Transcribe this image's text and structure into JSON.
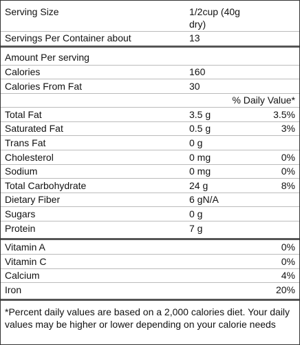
{
  "serving": {
    "label": "Serving Size",
    "value_lines": [
      "1/2cup (40g",
      "dry)"
    ]
  },
  "servings": {
    "label": "Servings Per Container about",
    "value": "13"
  },
  "amount_header": "Amount Per serving",
  "calories": [
    {
      "label": "Calories",
      "amount": "160"
    },
    {
      "label": "Calories From Fat",
      "amount": "30"
    }
  ],
  "dv_header": "% Daily Value*",
  "nutrients": [
    {
      "label": "Total Fat",
      "amount": "3.5 g",
      "dv": "3.5%"
    },
    {
      "label": "Saturated Fat",
      "amount": "0.5 g",
      "dv": "3%"
    },
    {
      "label": "Trans Fat",
      "amount": "0 g"
    },
    {
      "label": "Cholesterol",
      "amount": "0 mg",
      "dv": "0%"
    },
    {
      "label": "Sodium",
      "amount": "0 mg",
      "dv": "0%"
    },
    {
      "label": "Total Carbohydrate",
      "amount": "24 g",
      "dv": "8%"
    },
    {
      "label": "Dietary Fiber",
      "amount": "6 gN/A"
    },
    {
      "label": "Sugars",
      "amount": "0 g"
    },
    {
      "label": "Protein",
      "amount": "7 g"
    }
  ],
  "vitamins": [
    {
      "label": "Vitamin A",
      "dv": "0%"
    },
    {
      "label": "Vitamin C",
      "dv": "0%"
    },
    {
      "label": "Calcium",
      "dv": "4%"
    },
    {
      "label": "Iron",
      "dv": "20%"
    }
  ],
  "footnote": "*Percent daily values are based on a 2,000 calories diet. Your daily values may be higher or lower depending on your calorie needs"
}
